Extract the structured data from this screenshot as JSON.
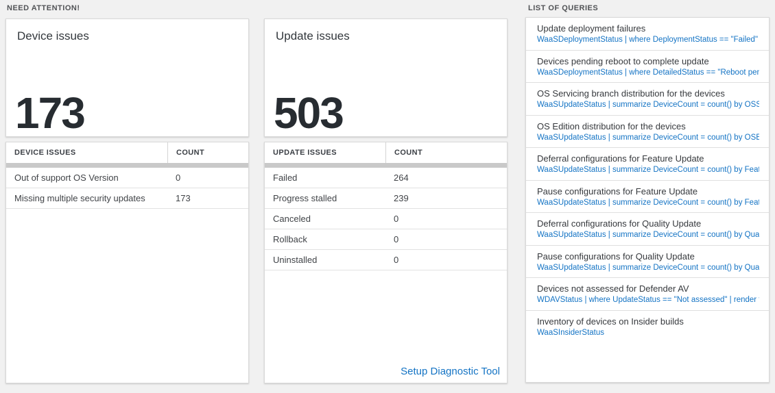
{
  "page": {
    "background_color": "#f1f1f1",
    "accent_blue": "#1373c4"
  },
  "need_attention": {
    "section_title": "NEED ATTENTION!",
    "device_card": {
      "title": "Device issues",
      "count": "173",
      "table": {
        "columns": [
          "DEVICE ISSUES",
          "COUNT"
        ],
        "rows": [
          {
            "label": "Out of support OS Version",
            "count": "0"
          },
          {
            "label": "Missing multiple security updates",
            "count": "173"
          }
        ]
      }
    },
    "update_card": {
      "title": "Update issues",
      "count": "503",
      "table": {
        "columns": [
          "UPDATE ISSUES",
          "COUNT"
        ],
        "rows": [
          {
            "label": "Failed",
            "count": "264"
          },
          {
            "label": "Progress stalled",
            "count": "239"
          },
          {
            "label": "Canceled",
            "count": "0"
          },
          {
            "label": "Rollback",
            "count": "0"
          },
          {
            "label": "Uninstalled",
            "count": "0"
          }
        ]
      },
      "link_label": "Setup Diagnostic Tool"
    }
  },
  "queries": {
    "section_title": "LIST OF QUERIES",
    "items": [
      {
        "title": "Update deployment failures",
        "query": "WaaSDeploymentStatus | where DeploymentStatus == \"Failed\" |..."
      },
      {
        "title": "Devices pending reboot to complete update",
        "query": "WaaSDeploymentStatus | where DetailedStatus == \"Reboot pend..."
      },
      {
        "title": "OS Servicing branch distribution for the devices",
        "query": "WaaSUpdateStatus | summarize DeviceCount = count() by OSSer..."
      },
      {
        "title": "OS Edition distribution for the devices",
        "query": "WaaSUpdateStatus | summarize DeviceCount = count() by OSEdit..."
      },
      {
        "title": "Deferral configurations for Feature Update",
        "query": "WaaSUpdateStatus | summarize DeviceCount = count() by Featur..."
      },
      {
        "title": "Pause configurations for Feature Update",
        "query": "WaaSUpdateStatus | summarize DeviceCount = count() by Featur..."
      },
      {
        "title": "Deferral configurations for Quality Update",
        "query": "WaaSUpdateStatus | summarize DeviceCount = count() by Qualit..."
      },
      {
        "title": "Pause configurations for Quality Update",
        "query": "WaaSUpdateStatus | summarize DeviceCount = count() by Qualit..."
      },
      {
        "title": "Devices not assessed for Defender AV",
        "query": "WDAVStatus | where UpdateStatus == \"Not assessed\" | render ta..."
      },
      {
        "title": "Inventory of devices on Insider builds",
        "query": "WaaSInsiderStatus"
      }
    ]
  }
}
